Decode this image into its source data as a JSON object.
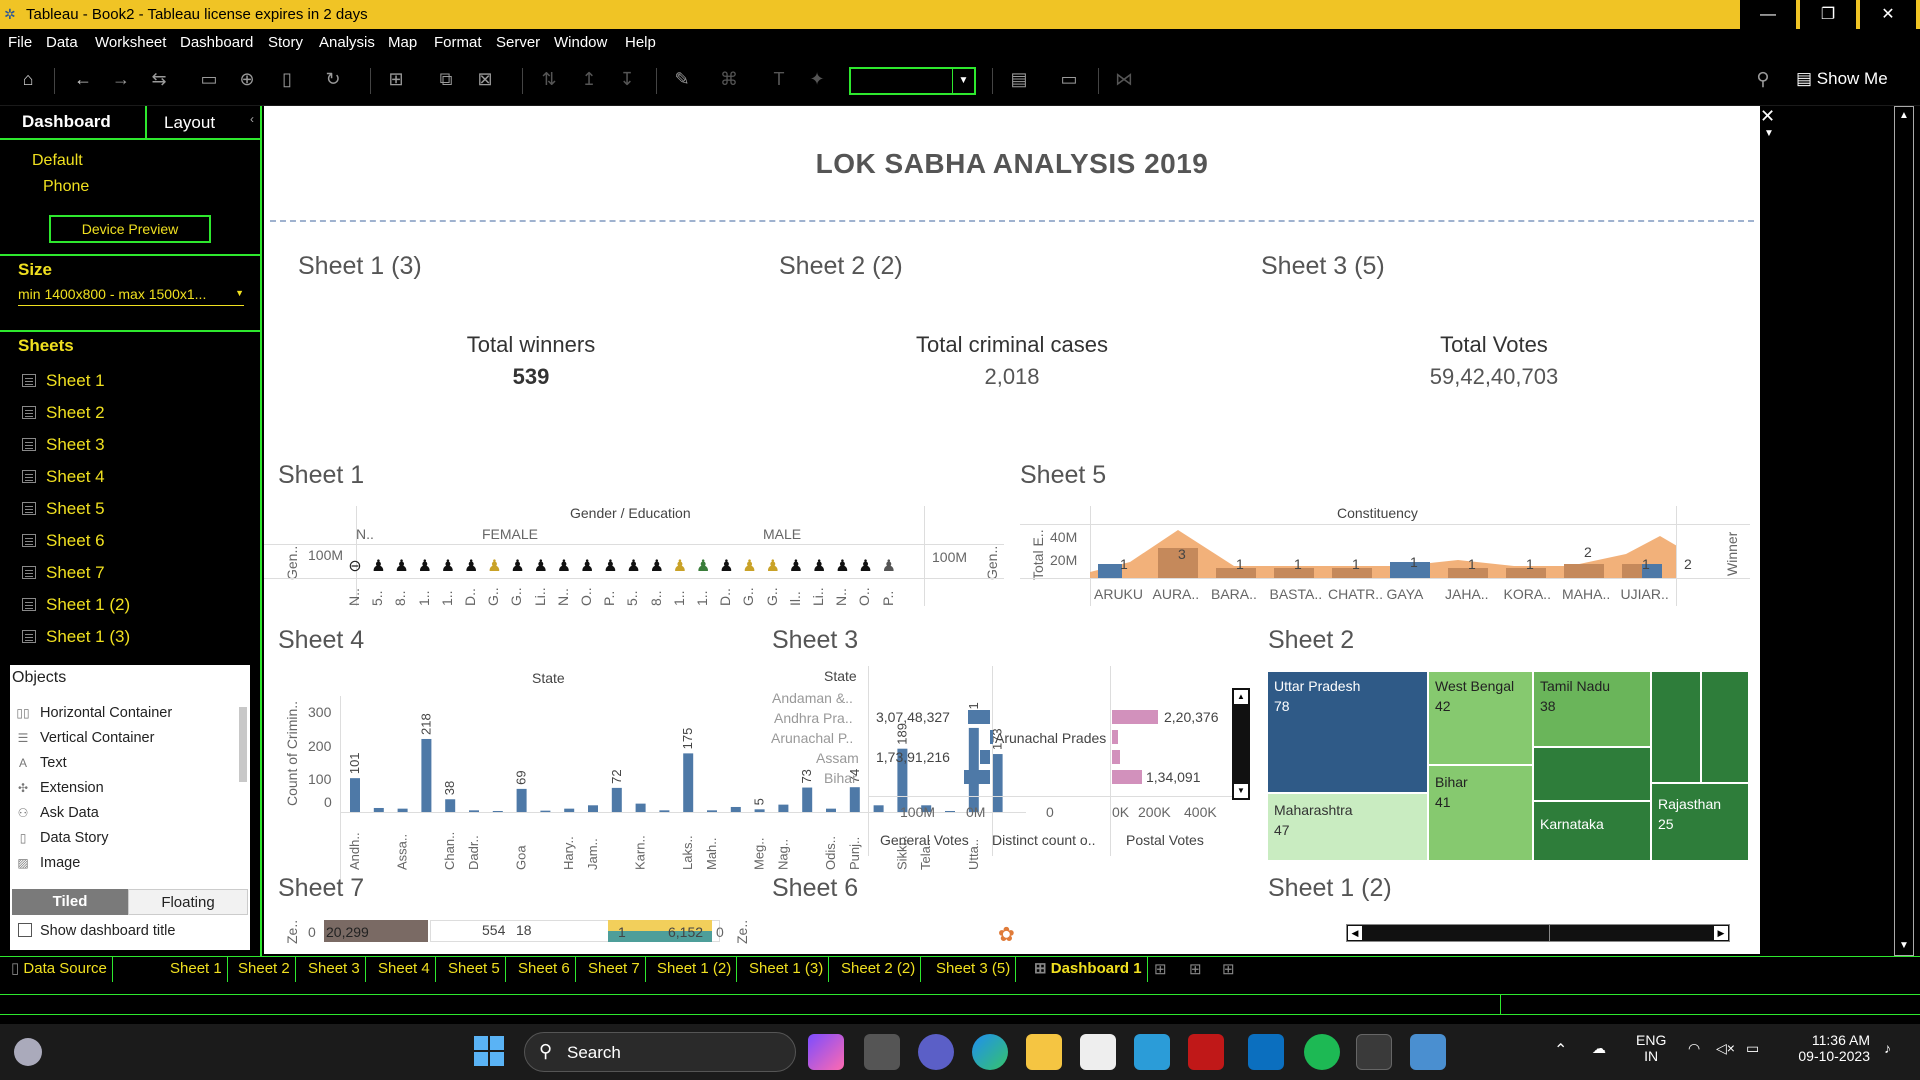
{
  "window": {
    "title": "Tableau - Book2 - Tableau license expires in 2 days",
    "minimize": "—",
    "restore": "❐",
    "close": "✕"
  },
  "menu": [
    "File",
    "Data",
    "Worksheet",
    "Dashboard",
    "Story",
    "Analysis",
    "Map",
    "Format",
    "Server",
    "Window",
    "Help"
  ],
  "toolbar": {
    "show_me": "Show Me"
  },
  "left_panel": {
    "tab_dashboard": "Dashboard",
    "tab_layout": "Layout",
    "device_default": "Default",
    "device_phone": "Phone",
    "device_preview": "Device Preview",
    "size_heading": "Size",
    "size_value": "min 1400x800 - max 1500x1...",
    "sheets_heading": "Sheets",
    "sheets": [
      "Sheet 1",
      "Sheet 2",
      "Sheet 3",
      "Sheet 4",
      "Sheet 5",
      "Sheet 6",
      "Sheet 7",
      "Sheet 1 (2)",
      "Sheet 1 (3)"
    ],
    "objects_heading": "Objects",
    "objects": [
      "Horizontal Container",
      "Vertical Container",
      "Text",
      "Extension",
      "Ask Data",
      "Data Story",
      "Image"
    ],
    "tiled": "Tiled",
    "floating": "Floating",
    "show_title": "Show dashboard title"
  },
  "dashboard": {
    "title": "LOK SABHA ANALYSIS 2019",
    "kpis": [
      {
        "sheet": "Sheet 1 (3)",
        "label": "Total winners",
        "value": "539"
      },
      {
        "sheet": "Sheet 2 (2)",
        "label": "Total criminal cases",
        "value": "2,018"
      },
      {
        "sheet": "Sheet 3 (5)",
        "label": "Total Votes",
        "value": "59,42,40,703"
      }
    ],
    "sheet1": {
      "title": "Sheet 1",
      "header": "Gender  /  Education",
      "groups": [
        "N..",
        "FEMALE",
        "MALE"
      ],
      "y_axis": "Gen..",
      "y_tick": "100M",
      "cols": [
        "N..",
        "5..",
        "8..",
        "1..",
        "1..",
        "D..",
        "G..",
        "G..",
        "Li..",
        "N..",
        "O..",
        "P..",
        "5..",
        "8..",
        "1..",
        "1..",
        "D..",
        "G..",
        "G..",
        "Il..",
        "Li..",
        "N..",
        "O..",
        "P.."
      ]
    },
    "sheet5": {
      "title": "Sheet 5",
      "header": "Constituency",
      "y_axis": "Total E..",
      "right_axis": "Winner",
      "y_ticks": [
        "40M",
        "20M"
      ],
      "labels": [
        "1",
        "3",
        "1",
        "1",
        "1",
        "1",
        "1",
        "1",
        "2",
        "1",
        "2"
      ],
      "cols": [
        "ARUKU",
        "AURA..",
        "BARA..",
        "BASTA..",
        "CHATR..",
        "GAYA",
        "JAHA..",
        "KORA..",
        "MAHA..",
        "UJIAR.."
      ]
    },
    "sheet4": {
      "title": "Sheet 4",
      "header": "State",
      "y_axis": "Count of Crimin..",
      "y_ticks": [
        "300",
        "200",
        "100",
        "0"
      ]
    },
    "sheet3": {
      "title": "Sheet 3",
      "header": "State",
      "states": [
        "Andaman &..",
        "Andhra Pra..",
        "Arunachal P..",
        "Assam",
        "Bihar"
      ],
      "general_labels": [
        "3,07,48,327",
        "1,73,91,216"
      ],
      "distinct_label": "Arunachal Prades",
      "postal_labels": [
        "2,20,376",
        "1,34,091"
      ],
      "axis_general": [
        "100M",
        "0M"
      ],
      "axis_distinct": [
        "0"
      ],
      "axis_postal": [
        "0K",
        "200K",
        "400K"
      ],
      "col_general": "General Votes",
      "col_distinct": "Distinct count o..",
      "col_postal": "Postal Votes"
    },
    "sheet2": {
      "title": "Sheet 2",
      "tiles": [
        {
          "name": "Uttar Pradesh",
          "value": "78"
        },
        {
          "name": "West Bengal",
          "value": "42"
        },
        {
          "name": "Tamil Nadu",
          "value": "38"
        },
        {
          "name": "Maharashtra",
          "value": "47"
        },
        {
          "name": "Bihar",
          "value": "41"
        },
        {
          "name": "Karnataka",
          "value": ""
        },
        {
          "name": "Rajasthan",
          "value": "25"
        }
      ]
    },
    "sheet7": {
      "title": "Sheet 7",
      "y_axis": "Ze..",
      "right_axis": "Ze..",
      "labels": [
        "0",
        "20,299",
        "554",
        "18",
        "1",
        "6,152",
        "0"
      ]
    },
    "sheet6": {
      "title": "Sheet 6"
    },
    "sheet1_2": {
      "title": "Sheet 1 (2)"
    }
  },
  "sheet_tabs": [
    "Data Source",
    "Sheet 1",
    "Sheet 2",
    "Sheet 3",
    "Sheet 4",
    "Sheet 5",
    "Sheet 6",
    "Sheet 7",
    "Sheet 1 (2)",
    "Sheet 1 (3)",
    "Sheet 2 (2)",
    "Sheet 3 (5)",
    "Dashboard 1"
  ],
  "taskbar": {
    "search": "Search",
    "lang1": "ENG",
    "lang2": "IN",
    "time": "11:36 AM",
    "date": "09-10-2023"
  },
  "colors": {
    "accent_green": "#2ee82e",
    "label_yellow": "#f0e020",
    "titlebar": "#f0c425",
    "bar_blue": "#4e79a7",
    "area_orange": "#f1a96b",
    "treemap_dark": "#2f5a87",
    "treemap_green": "#2e7d3a",
    "treemap_light": "#86c96f"
  }
}
